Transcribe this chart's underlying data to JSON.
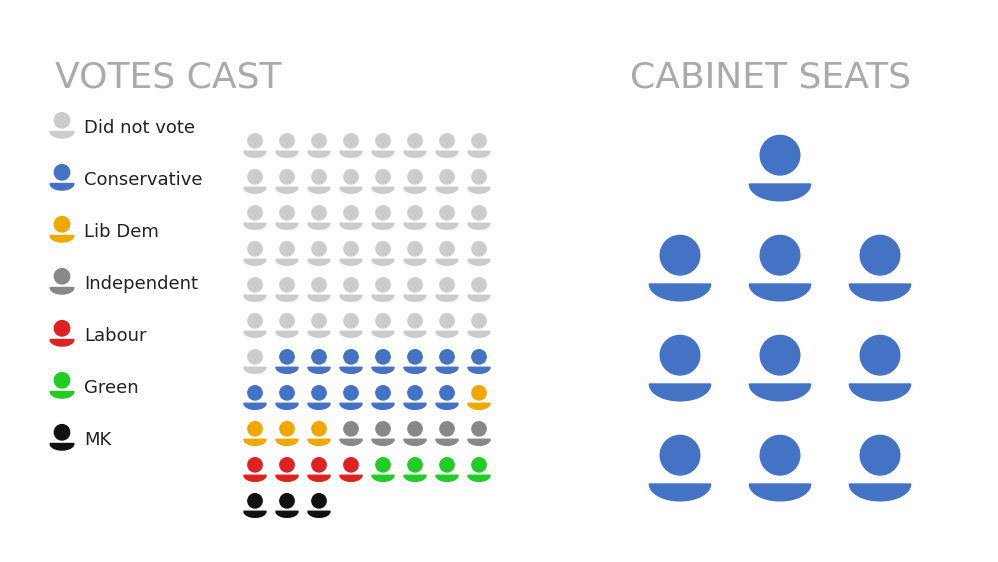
{
  "title_left": "VOTES CAST",
  "title_right": "CABINET SEATS",
  "title_color": "#aaaaaa",
  "background_color": "#ffffff",
  "legend_items": [
    {
      "label": "Did not vote",
      "color": "#cccccc"
    },
    {
      "label": "Conservative",
      "color": "#4472c4"
    },
    {
      "label": "Lib Dem",
      "color": "#f0a800"
    },
    {
      "label": "Independent",
      "color": "#888888"
    },
    {
      "label": "Labour",
      "color": "#dd2222"
    },
    {
      "label": "Green",
      "color": "#22cc22"
    },
    {
      "label": "MK",
      "color": "#111111"
    }
  ],
  "votes_grid": [
    [
      "grey",
      "grey",
      "grey",
      "grey",
      "grey",
      "grey",
      "grey",
      "grey"
    ],
    [
      "grey",
      "grey",
      "grey",
      "grey",
      "grey",
      "grey",
      "grey",
      "grey"
    ],
    [
      "grey",
      "grey",
      "grey",
      "grey",
      "grey",
      "grey",
      "grey",
      "grey"
    ],
    [
      "grey",
      "grey",
      "grey",
      "grey",
      "grey",
      "grey",
      "grey",
      "grey"
    ],
    [
      "grey",
      "grey",
      "grey",
      "grey",
      "grey",
      "grey",
      "grey",
      "grey"
    ],
    [
      "grey",
      "grey",
      "grey",
      "grey",
      "grey",
      "grey",
      "grey",
      "grey"
    ],
    [
      "grey",
      "blue",
      "blue",
      "blue",
      "blue",
      "blue",
      "blue",
      "blue"
    ],
    [
      "blue",
      "blue",
      "blue",
      "blue",
      "blue",
      "blue",
      "blue",
      "yellow"
    ],
    [
      "yellow",
      "yellow",
      "yellow",
      "mid_grey",
      "mid_grey",
      "mid_grey",
      "mid_grey",
      "mid_grey"
    ],
    [
      "red",
      "red",
      "red",
      "red",
      "green",
      "green",
      "green",
      "green"
    ]
  ],
  "votes_extra_row": [
    "black",
    "black",
    "black"
  ],
  "color_map": {
    "grey": "#cccccc",
    "blue": "#4472c4",
    "yellow": "#f0a800",
    "mid_grey": "#888888",
    "red": "#dd2222",
    "green": "#22cc22",
    "black": "#111111"
  },
  "cabinet_layout": [
    [
      1
    ],
    [
      3
    ],
    [
      3
    ],
    [
      3
    ]
  ],
  "cabinet_color": "#4472c4",
  "grid_cols": 8,
  "grid_rows": 10
}
